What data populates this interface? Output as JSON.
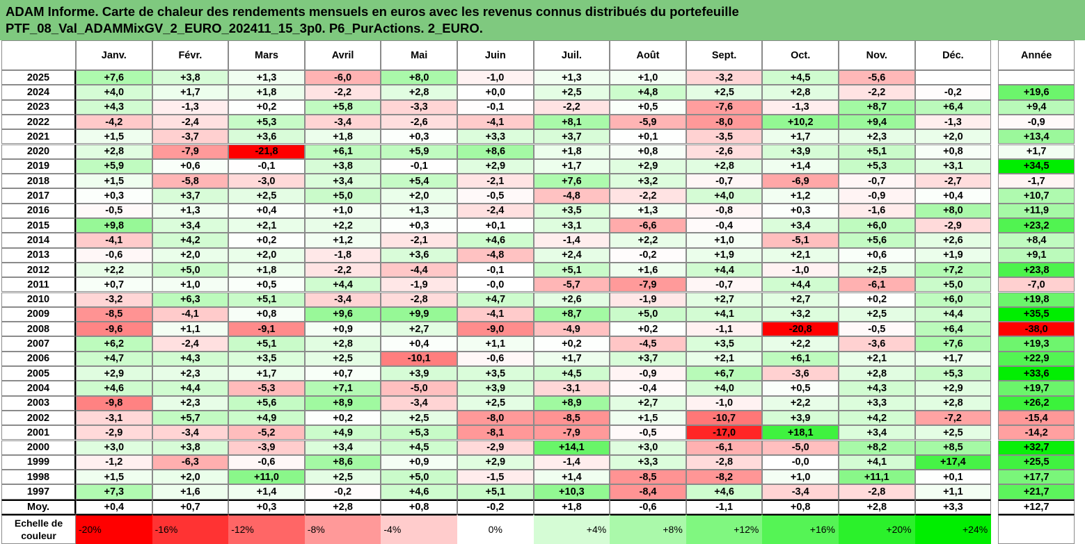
{
  "title": {
    "line1": "ADAM Informe. Carte de chaleur des rendements mensuels en euros avec les revenus connus distribués du portefeuille",
    "line2": "PTF_08_Val_ADAMMixGV_2_EURO_202411_15_3p0. P6_PurActions. 2_EURO."
  },
  "chart_data": {
    "type": "heatmap",
    "columns": [
      "Janv.",
      "Févr.",
      "Mars",
      "Avril",
      "Mai",
      "Juin",
      "Juil.",
      "Août",
      "Sept.",
      "Oct.",
      "Nov.",
      "Déc."
    ],
    "year_column": "Année",
    "rows": [
      {
        "label": "2025",
        "values": [
          "+7,6",
          "+3,8",
          "+1,3",
          "-6,0",
          "+8,0",
          "-1,0",
          "+1,3",
          "+1,0",
          "-3,2",
          "+4,5",
          "-5,6",
          ""
        ],
        "year": ""
      },
      {
        "label": "2024",
        "values": [
          "+4,0",
          "+1,7",
          "+1,8",
          "-2,2",
          "+2,8",
          "+0,0",
          "+2,5",
          "+4,8",
          "+2,5",
          "+2,8",
          "-2,2",
          "-0,2"
        ],
        "year": "+19,6"
      },
      {
        "label": "2023",
        "values": [
          "+4,3",
          "-1,3",
          "+0,2",
          "+5,8",
          "-3,3",
          "-0,1",
          "-2,2",
          "+0,5",
          "-7,6",
          "-1,3",
          "+8,7",
          "+6,4"
        ],
        "year": "+9,4"
      },
      {
        "label": "2022",
        "values": [
          "-4,2",
          "-2,4",
          "+5,3",
          "-3,4",
          "-2,6",
          "-4,1",
          "+8,1",
          "-5,9",
          "-8,0",
          "+10,2",
          "+9,4",
          "-1,3"
        ],
        "year": "-0,9"
      },
      {
        "label": "2021",
        "values": [
          "+1,5",
          "-3,7",
          "+3,6",
          "+1,8",
          "+0,3",
          "+3,3",
          "+3,7",
          "+0,1",
          "-3,5",
          "+1,7",
          "+2,3",
          "+2,0"
        ],
        "year": "+13,4"
      },
      {
        "label": "2020",
        "values": [
          "+2,8",
          "-7,9",
          "-21,8",
          "+6,1",
          "+5,9",
          "+8,6",
          "+1,8",
          "+0,8",
          "-2,6",
          "+3,9",
          "+5,1",
          "+0,8"
        ],
        "year": "+1,7"
      },
      {
        "label": "2019",
        "values": [
          "+5,9",
          "+0,6",
          "-0,1",
          "+3,8",
          "-0,1",
          "+2,9",
          "+1,7",
          "+2,9",
          "+2,8",
          "+1,4",
          "+5,3",
          "+3,1"
        ],
        "year": "+34,5"
      },
      {
        "label": "2018",
        "values": [
          "+1,5",
          "-5,8",
          "-3,0",
          "+3,4",
          "+5,4",
          "-2,1",
          "+7,6",
          "+3,2",
          "-0,7",
          "-6,9",
          "-0,7",
          "-2,7"
        ],
        "year": "-1,7"
      },
      {
        "label": "2017",
        "values": [
          "+0,3",
          "+3,7",
          "+2,5",
          "+5,0",
          "+2,0",
          "-0,5",
          "-4,8",
          "-2,2",
          "+4,0",
          "+1,2",
          "-0,9",
          "+0,4"
        ],
        "year": "+10,7"
      },
      {
        "label": "2016",
        "values": [
          "-0,5",
          "+1,3",
          "+0,4",
          "+1,0",
          "+1,3",
          "-2,4",
          "+3,5",
          "+1,3",
          "-0,8",
          "+0,3",
          "-1,6",
          "+8,0"
        ],
        "year": "+11,9"
      },
      {
        "label": "2015",
        "values": [
          "+9,8",
          "+3,4",
          "+2,1",
          "+2,2",
          "+0,3",
          "+0,1",
          "+3,1",
          "-6,6",
          "-0,4",
          "+3,4",
          "+6,0",
          "-2,9"
        ],
        "year": "+23,2"
      },
      {
        "label": "2014",
        "values": [
          "-4,1",
          "+4,2",
          "+0,2",
          "+1,2",
          "-2,1",
          "+4,6",
          "-1,4",
          "+2,2",
          "+1,0",
          "-5,1",
          "+5,6",
          "+2,6"
        ],
        "year": "+8,4"
      },
      {
        "label": "2013",
        "values": [
          "-0,6",
          "+2,0",
          "+2,0",
          "-1,8",
          "+3,6",
          "-4,8",
          "+2,4",
          "-0,2",
          "+1,9",
          "+2,1",
          "+0,6",
          "+1,9"
        ],
        "year": "+9,1"
      },
      {
        "label": "2012",
        "values": [
          "+2,2",
          "+5,0",
          "+1,8",
          "-2,2",
          "-4,4",
          "-0,1",
          "+5,1",
          "+1,6",
          "+4,4",
          "-1,0",
          "+2,5",
          "+7,2"
        ],
        "year": "+23,8"
      },
      {
        "label": "2011",
        "values": [
          "+0,7",
          "+1,0",
          "+0,5",
          "+4,4",
          "-1,9",
          "-0,0",
          "-5,7",
          "-7,9",
          "-0,7",
          "+4,4",
          "-6,1",
          "+5,0"
        ],
        "year": "-7,0"
      },
      {
        "label": "2010",
        "values": [
          "-3,2",
          "+6,3",
          "+5,1",
          "-3,4",
          "-2,8",
          "+4,7",
          "+2,6",
          "-1,9",
          "+2,7",
          "+2,7",
          "+0,2",
          "+6,0"
        ],
        "year": "+19,8"
      },
      {
        "label": "2009",
        "values": [
          "-8,5",
          "-4,1",
          "+0,8",
          "+9,6",
          "+9,9",
          "-4,1",
          "+8,7",
          "+5,0",
          "+4,1",
          "+3,2",
          "+2,5",
          "+4,4"
        ],
        "year": "+35,5"
      },
      {
        "label": "2008",
        "values": [
          "-9,6",
          "+1,1",
          "-9,1",
          "+0,9",
          "+2,7",
          "-9,0",
          "-4,9",
          "+0,2",
          "-1,1",
          "-20,8",
          "-0,5",
          "+6,4"
        ],
        "year": "-38,0"
      },
      {
        "label": "2007",
        "values": [
          "+6,2",
          "-2,4",
          "+5,1",
          "+2,8",
          "+0,4",
          "+1,1",
          "+0,2",
          "-4,5",
          "+3,5",
          "+2,2",
          "-3,6",
          "+7,6"
        ],
        "year": "+19,3"
      },
      {
        "label": "2006",
        "values": [
          "+4,7",
          "+4,3",
          "+3,5",
          "+2,5",
          "-10,1",
          "-0,6",
          "+1,7",
          "+3,7",
          "+2,1",
          "+6,1",
          "+2,1",
          "+1,7"
        ],
        "year": "+22,9"
      },
      {
        "label": "2005",
        "values": [
          "+2,9",
          "+2,3",
          "+1,7",
          "+0,7",
          "+3,9",
          "+3,5",
          "+4,5",
          "-0,9",
          "+6,7",
          "-3,6",
          "+2,8",
          "+5,3"
        ],
        "year": "+33,6"
      },
      {
        "label": "2004",
        "values": [
          "+4,6",
          "+4,4",
          "-5,3",
          "+7,1",
          "-5,0",
          "+3,9",
          "-3,1",
          "-0,4",
          "+4,0",
          "+0,5",
          "+4,3",
          "+2,9"
        ],
        "year": "+19,7"
      },
      {
        "label": "2003",
        "values": [
          "-9,8",
          "+2,3",
          "+5,6",
          "+8,9",
          "-3,4",
          "+2,5",
          "+8,9",
          "+2,7",
          "-1,0",
          "+2,2",
          "+3,3",
          "+2,8"
        ],
        "year": "+26,2"
      },
      {
        "label": "2002",
        "values": [
          "-3,1",
          "+5,7",
          "+4,9",
          "+0,2",
          "+2,5",
          "-8,0",
          "-8,5",
          "+1,5",
          "-10,7",
          "+3,9",
          "+4,2",
          "-7,2"
        ],
        "year": "-15,4"
      },
      {
        "label": "2001",
        "values": [
          "-2,9",
          "-3,4",
          "-5,2",
          "+4,9",
          "+5,3",
          "-8,1",
          "-7,9",
          "-0,5",
          "-17,0",
          "+18,1",
          "+3,4",
          "+2,5"
        ],
        "year": "-14,2"
      },
      {
        "label": "2000",
        "values": [
          "+3,0",
          "+3,8",
          "-3,9",
          "+3,4",
          "+4,5",
          "-2,9",
          "+14,1",
          "+3,0",
          "-6,1",
          "-5,0",
          "+8,2",
          "+8,5"
        ],
        "year": "+32,7"
      },
      {
        "label": "1999",
        "values": [
          "-1,2",
          "-6,3",
          "-0,6",
          "+8,6",
          "+0,9",
          "+2,9",
          "-1,4",
          "+3,3",
          "-2,8",
          "-0,0",
          "+4,1",
          "+17,4"
        ],
        "year": "+25,5"
      },
      {
        "label": "1998",
        "values": [
          "+1,5",
          "+2,0",
          "+11,0",
          "+2,5",
          "+5,0",
          "-1,5",
          "+1,4",
          "-8,5",
          "-8,2",
          "+1,0",
          "+11,1",
          "+0,1"
        ],
        "year": "+17,7"
      },
      {
        "label": "1997",
        "values": [
          "+7,3",
          "+1,6",
          "+1,4",
          "-0,2",
          "+4,6",
          "+5,1",
          "+10,3",
          "-8,4",
          "+4,6",
          "-3,4",
          "-2,8",
          "+1,1"
        ],
        "year": "+21,7"
      }
    ],
    "average_row": {
      "label": "Moy.",
      "values": [
        "+0,4",
        "+0,7",
        "+0,3",
        "+2,8",
        "+0,8",
        "-0,2",
        "+1,8",
        "-0,6",
        "-1,1",
        "+0,8",
        "+2,8",
        "+3,3"
      ],
      "year": "+12,7"
    },
    "scale": {
      "label_line1": "Echelle de",
      "label_line2": "couleur",
      "steps": [
        "-20%",
        "-16%",
        "-12%",
        "-8%",
        "-4%",
        "0%",
        "+4%",
        "+8%",
        "+12%",
        "+16%",
        "+20%",
        "+24%"
      ]
    },
    "colors": {
      "negative_max": "#ff0000",
      "neutral": "#ffffff",
      "positive_max": "#00ee00",
      "title_bg": "#7fc97f"
    }
  }
}
